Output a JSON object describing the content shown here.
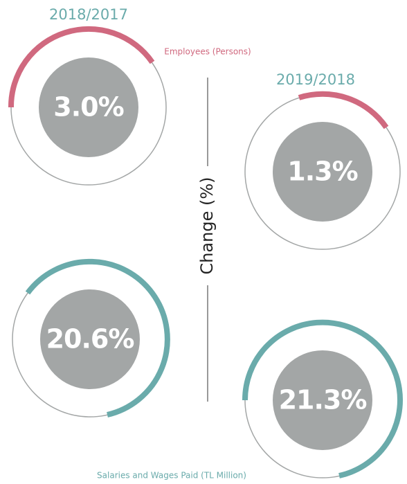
{
  "periods": [
    "2018/2017",
    "2019/2018"
  ],
  "employees": {
    "label": "Employees (Persons)",
    "values": [
      "3.0%",
      "1.3%"
    ]
  },
  "salaries": {
    "label": "Salaries and Wages Paid (TL Million)",
    "values": [
      "20.6%",
      "21.3%"
    ]
  },
  "axis_label": "Change (%)"
}
